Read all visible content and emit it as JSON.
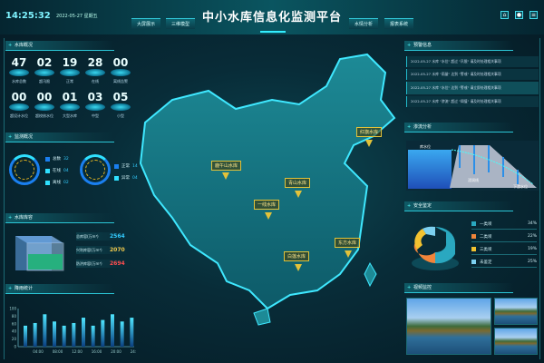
{
  "header": {
    "time": "14:25:32",
    "date": "2022-05-27 星期五",
    "title": "中小水库信息化监测平台",
    "nav_left": [
      "大屏展示",
      "三维模型"
    ],
    "nav_right": [
      "水情分析",
      "报表系统"
    ],
    "icons": [
      "home-icon",
      "user-icon",
      "settings-icon"
    ]
  },
  "left": {
    "stats": {
      "title": "水库概况",
      "items": [
        {
          "value": "47",
          "label": "水库总数"
        },
        {
          "value": "02",
          "label": "超汛限"
        },
        {
          "value": "19",
          "label": "正常"
        },
        {
          "value": "28",
          "label": "在线"
        },
        {
          "value": "00",
          "label": "离线告警"
        },
        {
          "value": "00",
          "label": "超设计水位"
        },
        {
          "value": "00",
          "label": "超校核水位"
        },
        {
          "value": "01",
          "label": "大型水库"
        },
        {
          "value": "03",
          "label": "中型"
        },
        {
          "value": "05",
          "label": "小型"
        }
      ]
    },
    "monitor": {
      "title": "监测概况",
      "ring1": [
        {
          "label": "总数",
          "value": "32",
          "color": "#1a7ff0"
        },
        {
          "label": "在线",
          "value": "04",
          "color": "#2fe0ff"
        },
        {
          "label": "离线",
          "value": "02",
          "color": "#2fe0ff"
        }
      ],
      "ring2": [
        {
          "label": "正常",
          "value": "14",
          "color": "#1a7ff0"
        },
        {
          "label": "异常",
          "value": "04",
          "color": "#2fe0ff"
        }
      ]
    },
    "capacity": {
      "title": "水库库容",
      "rows": [
        {
          "label": "总库容(万m³)",
          "value": "2564",
          "color": "#3cf"
        },
        {
          "label": "兴利库容(万m³)",
          "value": "2070",
          "color": "#f2c94c"
        },
        {
          "label": "防洪库容(万m³)",
          "value": "2694",
          "color": "#ff4d4f"
        }
      ]
    },
    "rain": {
      "title": "降雨统计"
    }
  },
  "chart_data": {
    "type": "bar",
    "yticks": [
      "0",
      "20",
      "40",
      "60",
      "80",
      "100"
    ],
    "ylim": [
      0,
      100
    ],
    "xticks": [
      "04:00",
      "08:00",
      "12:00",
      "16:00",
      "20:00",
      "24:00"
    ],
    "values": [
      55,
      62,
      85,
      66,
      55,
      62,
      76,
      55,
      70,
      85,
      66,
      76
    ]
  },
  "map": {
    "reservoirs": [
      "鹿午山水库",
      "红旗水库",
      "一线水库",
      "白莲水库",
      "青山水库",
      "东方水库"
    ]
  },
  "right": {
    "news": {
      "title": "预警信息",
      "items": [
        "2022-05-27 水库 \"水位\" 超过 \"汛限\" 请及时处理相关事项",
        "2022-05-27 水库 \"雨量\" 达到 \"警戒\" 请及时处理相关事项",
        "2022-05-27 水库 \"水位\" 达到 \"警戒\" 请立即处理相关事项",
        "2022-05-27 水库 \"渗流\" 超过 \"阈值\" 请及时处理相关事项"
      ]
    },
    "section": {
      "title": "渗流分析",
      "labels": [
        "库水位",
        "浸润线",
        "下游水位"
      ]
    },
    "stats": {
      "title": "安全鉴定",
      "items": [
        {
          "label": "一类坝",
          "value": "34%",
          "color": "#2aa8c0"
        },
        {
          "label": "二类坝",
          "value": "22%",
          "color": "#f0843a"
        },
        {
          "label": "三类坝",
          "value": "19%",
          "color": "#f2c230"
        },
        {
          "label": "未鉴定",
          "value": "25%",
          "color": "#7cd0f0"
        }
      ]
    },
    "video": {
      "title": "视频监控"
    }
  }
}
